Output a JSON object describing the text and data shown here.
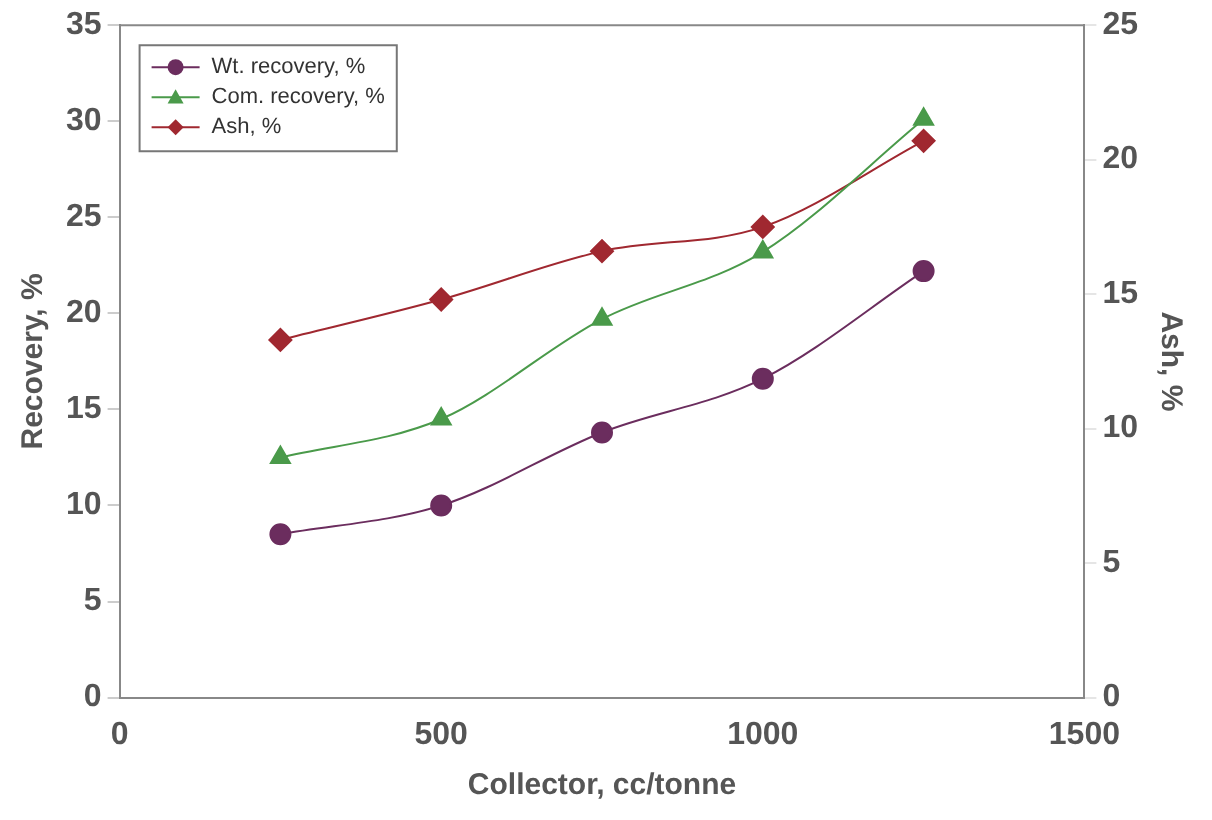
{
  "chart_data": {
    "type": "line",
    "xlabel": "Collector, cc/tonne",
    "ylabel": "Recovery, %",
    "y2label": "Ash, %",
    "x": [
      250,
      500,
      750,
      1000,
      1250
    ],
    "xlim": [
      0,
      1500
    ],
    "xticks": [
      0,
      500,
      1000,
      1500
    ],
    "ylim": [
      0,
      35
    ],
    "yticks": [
      0,
      5,
      10,
      15,
      20,
      25,
      30,
      35
    ],
    "y2lim": [
      0,
      25
    ],
    "y2ticks": [
      0,
      5,
      10,
      15,
      20,
      25
    ],
    "grid": false,
    "legend": "top left",
    "line_style": "solid",
    "series": [
      {
        "name": "Wt. recovery, %",
        "color": "#6b2d5e",
        "marker": "circle",
        "values": [
          8.5,
          10,
          13.8,
          16.6,
          22.2
        ]
      },
      {
        "name": "Com. recovery, %",
        "color": "#4a9a4a",
        "marker": "triangle",
        "values": [
          12.5,
          14.5,
          19.7,
          23.2,
          30.1
        ]
      },
      {
        "name": "Ash, %",
        "color": "#a02830",
        "marker": "diamond",
        "axis": "y2",
        "values": [
          13.3,
          14.8,
          16.6,
          17.5,
          20.7
        ]
      }
    ]
  }
}
